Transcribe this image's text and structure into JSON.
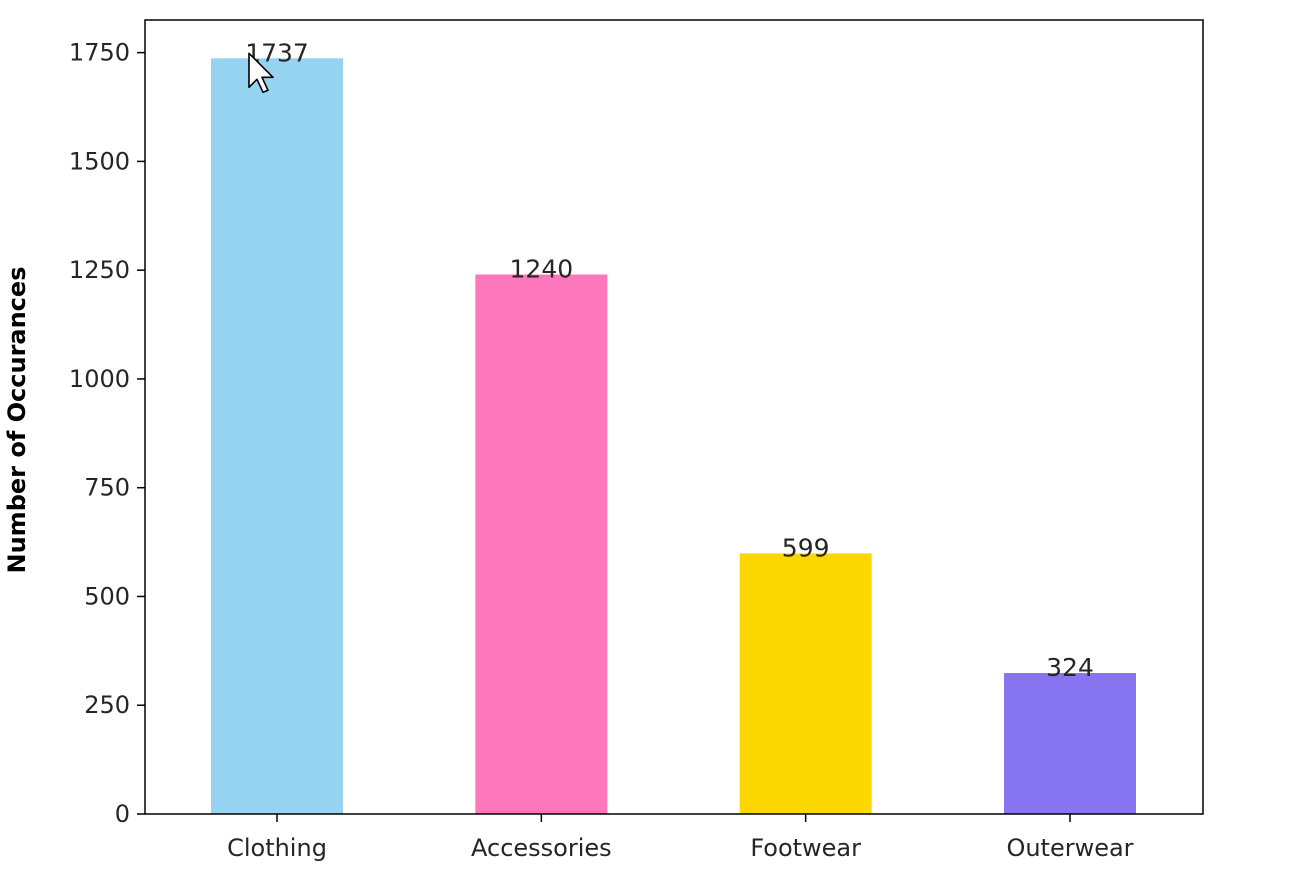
{
  "chart_data": {
    "type": "bar",
    "title": "",
    "xlabel": "",
    "ylabel": "Number of Occurances",
    "categories": [
      "Clothing",
      "Accessories",
      "Footwear",
      "Outerwear"
    ],
    "values": [
      1737,
      1240,
      599,
      324
    ],
    "colors": [
      "#95d3f1",
      "#fc77bc",
      "#fdd800",
      "#8774f1"
    ],
    "ylim": [
      0,
      1825
    ],
    "yticks": [
      0,
      250,
      500,
      750,
      1000,
      1250,
      1500,
      1750
    ],
    "show_value_labels": true,
    "grid": false,
    "legend": "none"
  },
  "mouse_cursor": {
    "icon": "arrow-cursor-icon",
    "over_category": "Clothing"
  }
}
